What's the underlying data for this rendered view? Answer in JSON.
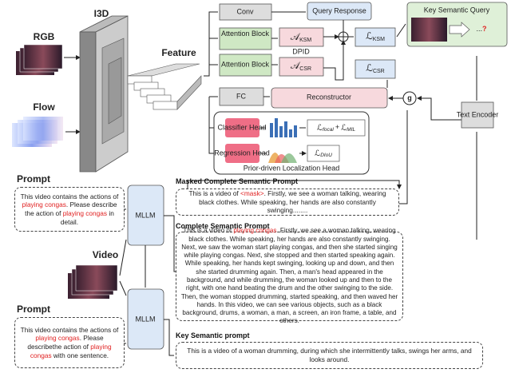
{
  "labels": {
    "i3d": "I3D",
    "rgb": "RGB",
    "flow": "Flow",
    "feature": "Feature",
    "video": "Video",
    "prompt_1": "Prompt",
    "prompt_2": "Prompt"
  },
  "blocks": {
    "conv": "Conv",
    "attention_1": "Attention Block",
    "attention_2": "Attention Block",
    "fc": "FC",
    "query_response": "Query Response",
    "reconstructor": "Reconstructor",
    "dpid": "DPID",
    "key_semantic_query": "Key Semantic Query",
    "text_encoder": "Text Encoder",
    "mllm_1": "MLLM",
    "mllm_2": "MLLM",
    "classifier_head": "Classifier Head",
    "regression_head": "Regression Head",
    "localization_head": "Prior-driven Localization Head",
    "g": "g",
    "query_mark": "...",
    "question": "?"
  },
  "math": {
    "a_ksm": {
      "symbol": "𝒜",
      "sub": "KSM"
    },
    "a_csr": {
      "symbol": "𝒜",
      "sub": "CSR"
    },
    "l_ksm": {
      "symbol": "ℒ",
      "sub": "KSM"
    },
    "l_csr": {
      "symbol": "ℒ",
      "sub": "CSR"
    },
    "l_cls": {
      "terms": [
        {
          "symbol": "ℒ",
          "sub": "focal"
        },
        {
          "symbol": "ℒ",
          "sub": "MIL"
        }
      ],
      "op": "+"
    },
    "l_reg": {
      "symbol": "ℒ",
      "sub": "DIoU"
    }
  },
  "prompts": [
    {
      "parts": [
        "This video contains the actions of ",
        "playing congas",
        ". Please describe the action of ",
        "playing congas",
        " in detail."
      ]
    },
    {
      "parts": [
        "This video contains the actions of ",
        "playing congas",
        ". Please describethe action of ",
        "playing congas",
        " with one sentence."
      ]
    }
  ],
  "semantic": [
    {
      "title": "Masked Complete Semantic Prompt",
      "parts": [
        "This is a video of ",
        "<mask>",
        ". Firstly, we see a woman talking, wearing black clothes. While speaking, her hands are also constantly swinging........"
      ]
    },
    {
      "title": "Complete Semantic Prompt",
      "parts": [
        "This is a video of ",
        "playing congas",
        ". Firstly, we see a woman talking, wearing black clothes. While speaking, her hands are also constantly swinging. Next, we saw the woman start playing congas, and then she started singing while playing congas. Next, she stopped and then started speaking again. While speaking, her hands kept swinging, looking up and down, and then she started drumming again. Then, a man's head appeared in the background, and while drumming, the woman looked up and then to the right, with one hand beating the drum and the other swinging to the side. Then, the woman stopped drumming, started speaking, and then waved her hands. In this video, we can see various objects, such as a black background, drums, a woman, a man, a screen, an iron frame, a table, and others."
      ]
    },
    {
      "title": "Key Semantic prompt",
      "parts": [
        "This is a video of a woman drumming, during which she intermittently talks, swings her arms, and looks around."
      ]
    }
  ]
}
